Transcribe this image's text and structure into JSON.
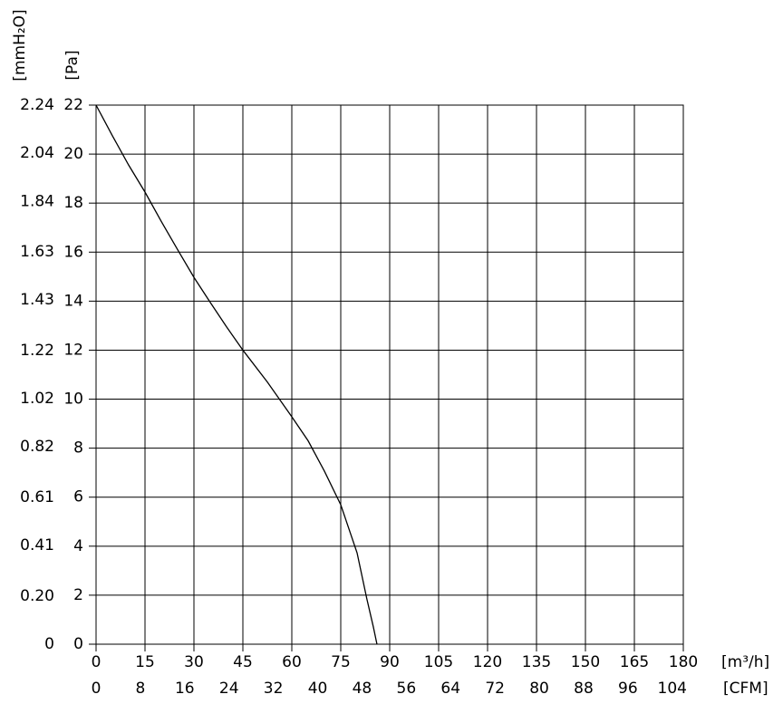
{
  "chart_data": {
    "type": "line",
    "x_label": "[m³/h]",
    "x2_label": "[CFM]",
    "y_label": "[Pa]",
    "y2_label": "[mmH₂O]",
    "x": [
      0,
      5,
      10,
      15,
      20,
      25,
      30,
      35,
      40,
      45,
      52.5,
      60,
      65,
      70,
      75,
      80,
      83,
      85,
      86.1
    ],
    "series": [
      {
        "color": "#000000",
        "values": [
          22,
          20.75,
          19.55,
          18.45,
          17.25,
          16.1,
          14.97,
          13.95,
          12.95,
          12.0,
          10.7,
          9.28,
          8.3,
          7.06,
          5.69,
          3.73,
          1.85,
          0.7,
          0
        ]
      }
    ],
    "xlim": [
      0,
      180
    ],
    "xticks": [
      0,
      15,
      30,
      45,
      60,
      75,
      90,
      105,
      120,
      135,
      150,
      165,
      180
    ],
    "x2lim": [
      0,
      106
    ],
    "x2ticks": [
      0,
      8,
      16,
      24,
      32,
      40,
      48,
      56,
      64,
      72,
      80,
      88,
      96,
      104
    ],
    "ylim": [
      0,
      22
    ],
    "yticks": [
      0,
      2,
      4,
      6,
      8,
      10,
      12,
      14,
      16,
      18,
      20,
      22
    ],
    "y2lim": [
      0,
      2.24
    ],
    "y2ticks": [
      0,
      {
        "value": 0.2,
        "label": "0.20"
      },
      0.41,
      0.61,
      0.82,
      1.02,
      1.22,
      1.43,
      1.63,
      1.84,
      2.04,
      2.24
    ],
    "grid": true
  }
}
